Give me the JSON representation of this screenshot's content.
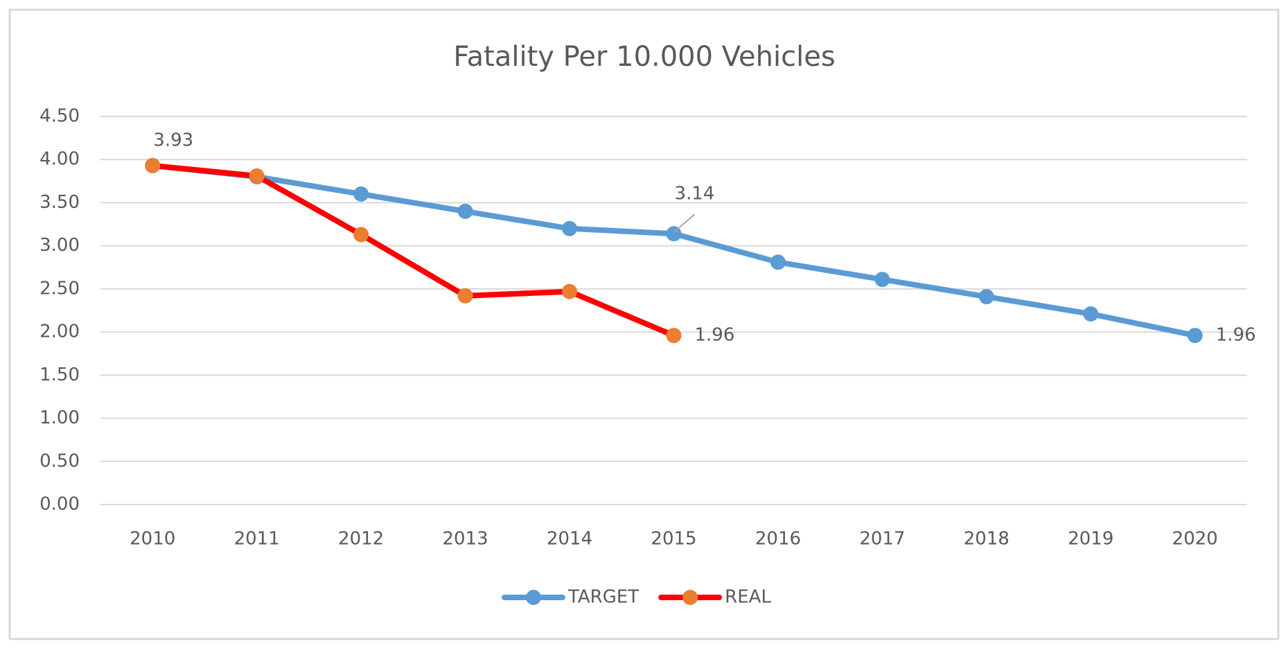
{
  "chart_data": {
    "type": "line",
    "title": "Fatality Per 10.000 Vehicles",
    "categories": [
      "2010",
      "2011",
      "2012",
      "2013",
      "2014",
      "2015",
      "2016",
      "2017",
      "2018",
      "2019",
      "2020"
    ],
    "series": [
      {
        "name": "TARGET",
        "color": "#5b9bd5",
        "marker_color": "#5b9bd5",
        "values": [
          3.93,
          3.8,
          3.6,
          3.4,
          3.2,
          3.14,
          2.81,
          2.61,
          2.41,
          2.21,
          1.96
        ],
        "value_labels": [
          "3.93",
          null,
          null,
          null,
          null,
          "3.14",
          null,
          null,
          null,
          null,
          "1.96"
        ],
        "label_color": "#2e75b6"
      },
      {
        "name": "REAL",
        "color": "#ff0000",
        "marker_color": "#ed7d31",
        "values": [
          3.93,
          3.81,
          3.13,
          2.42,
          2.47,
          1.96,
          null,
          null,
          null,
          null,
          null
        ],
        "value_labels": [
          null,
          null,
          null,
          null,
          null,
          "1.96",
          null,
          null,
          null,
          null,
          null
        ],
        "label_color": "#ff0000"
      }
    ],
    "ylim": [
      0,
      4.5
    ],
    "yticks": [
      {
        "value": 0,
        "label": "0.00"
      },
      {
        "value": 0.5,
        "label": "0.50"
      },
      {
        "value": 1,
        "label": "1.00"
      },
      {
        "value": 1.5,
        "label": "1.50"
      },
      {
        "value": 2,
        "label": "2.00"
      },
      {
        "value": 2.5,
        "label": "2.50"
      },
      {
        "value": 3,
        "label": "3.00"
      },
      {
        "value": 3.5,
        "label": "3.50"
      },
      {
        "value": 4,
        "label": "4.00"
      },
      {
        "value": 4.5,
        "label": "4.50"
      }
    ],
    "grid": true,
    "legend": "bottom"
  }
}
